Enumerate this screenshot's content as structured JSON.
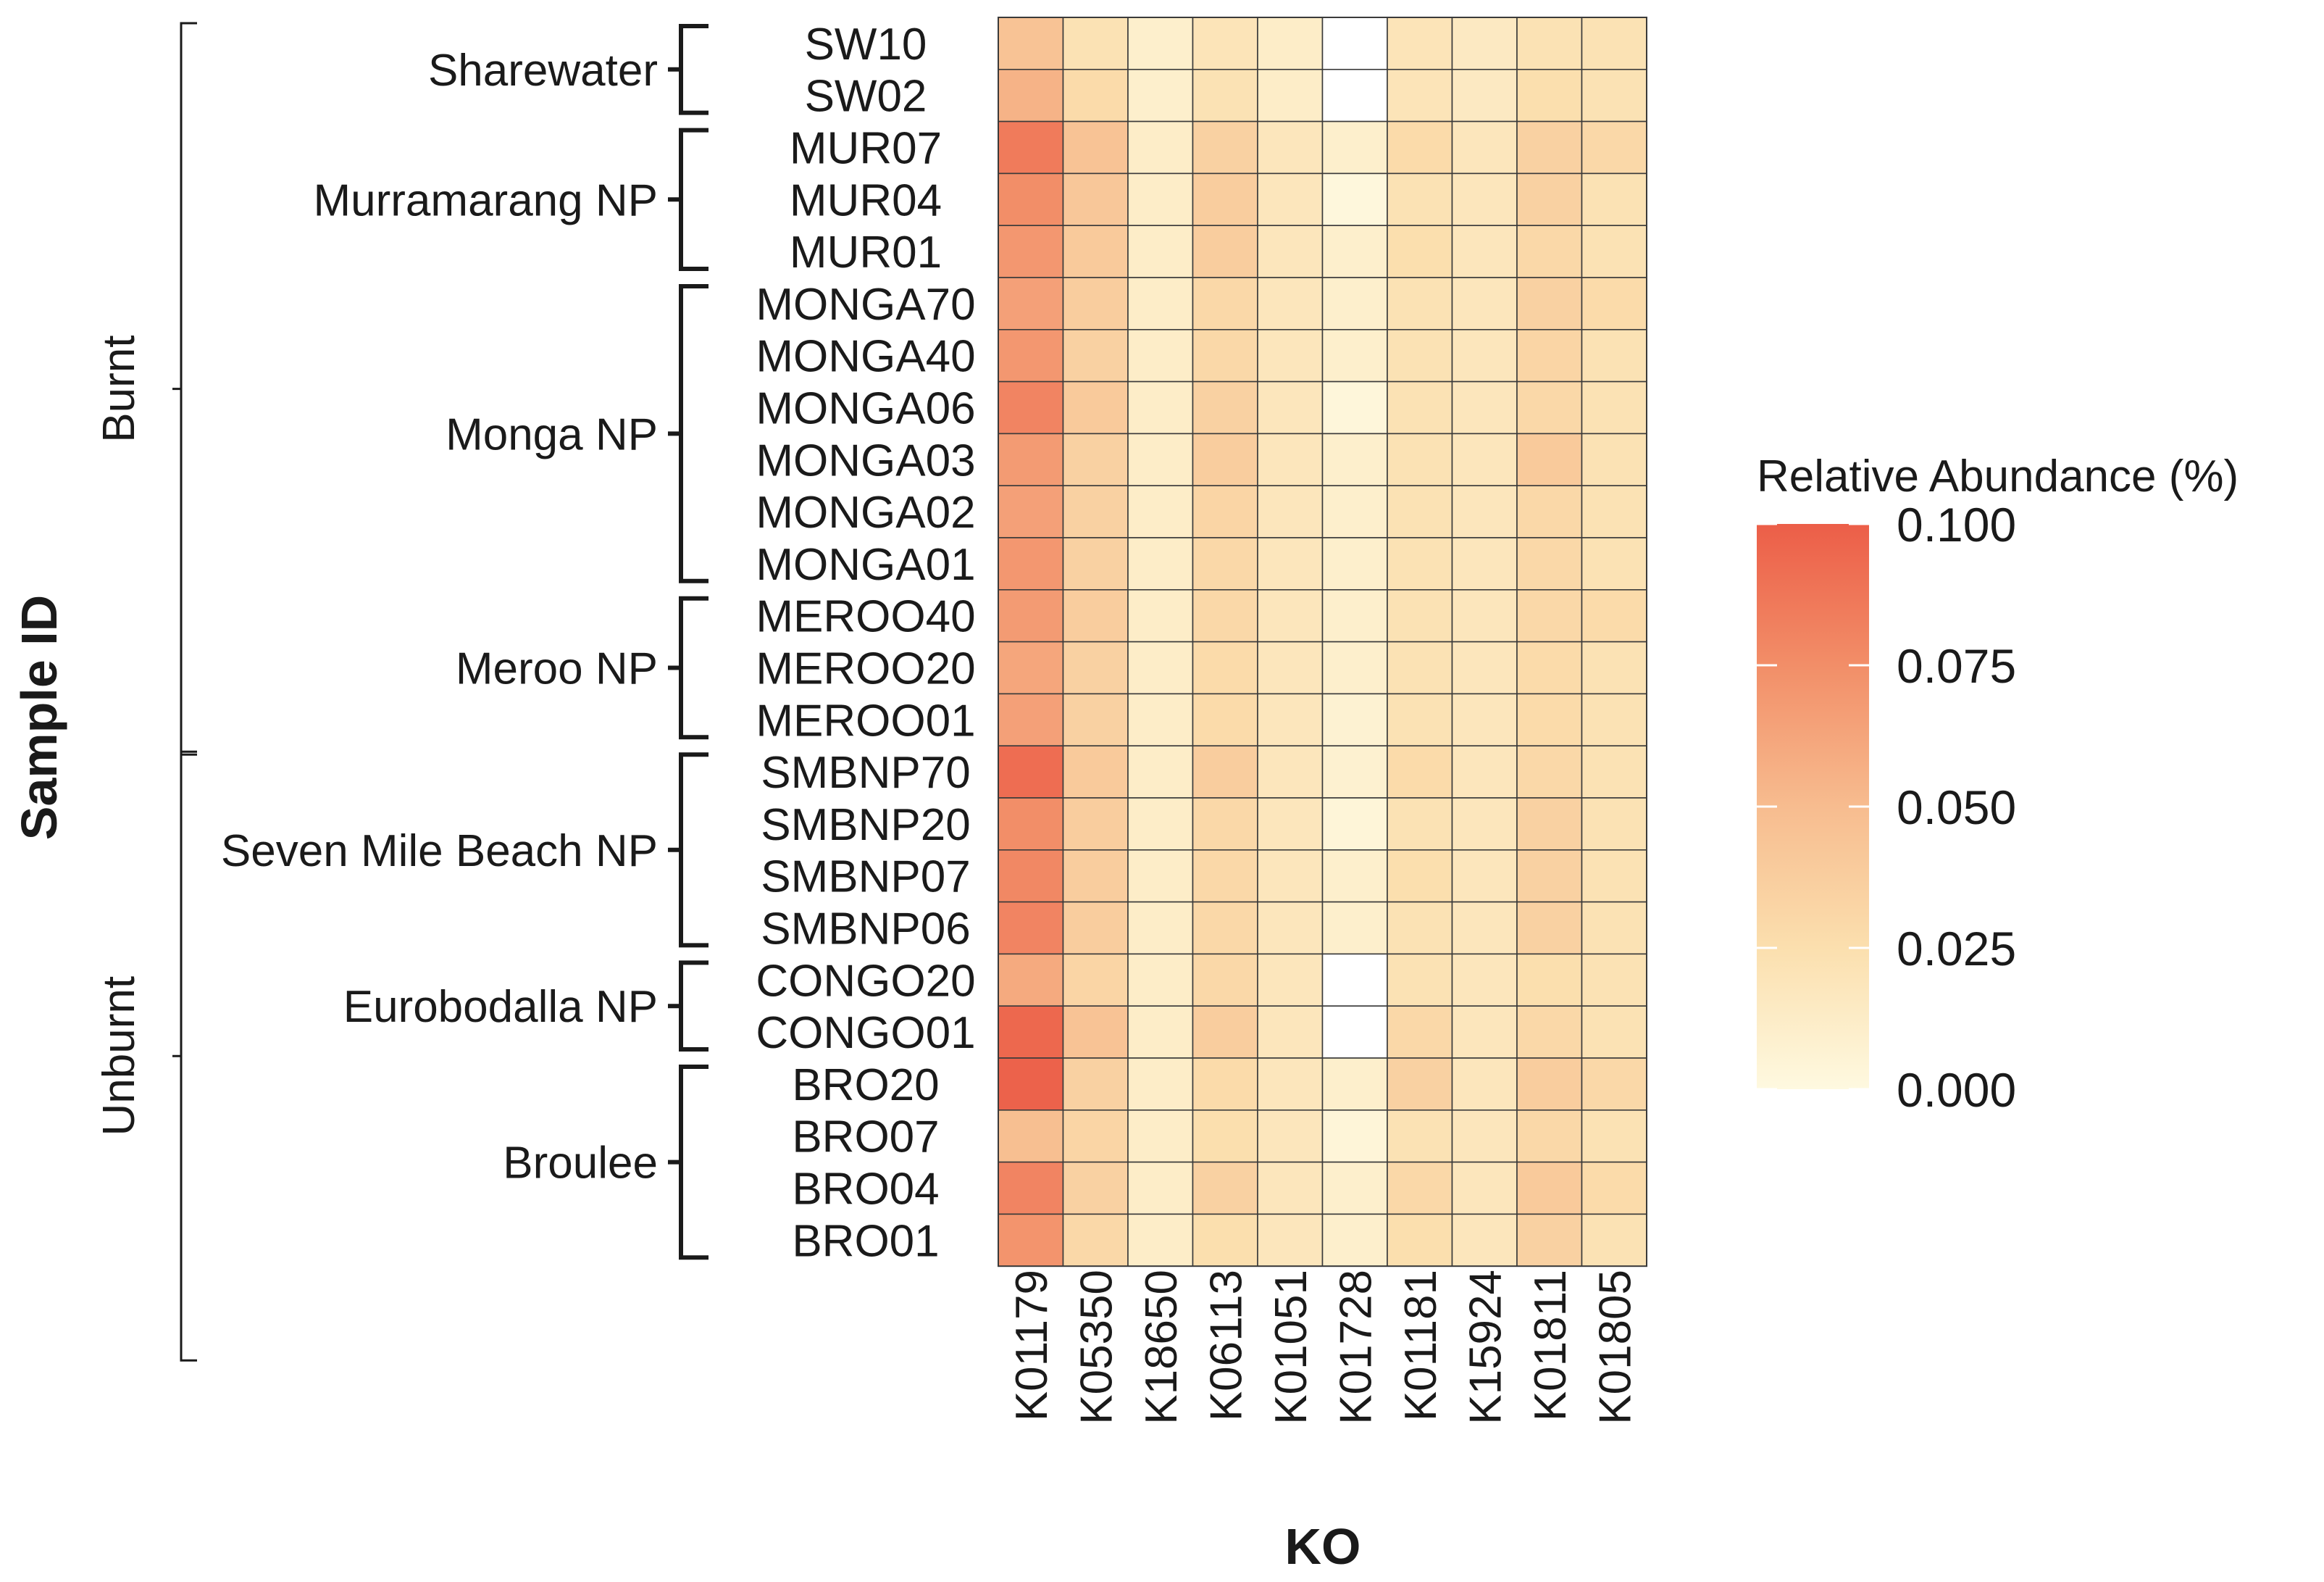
{
  "chart_data": {
    "type": "heatmap",
    "xlabel": "KO",
    "ylabel": "Sample ID",
    "legend_title": "Relative Abundance (%)",
    "color_range": [
      0,
      0.1
    ],
    "low_color": "#fef9e0",
    "high_color": "#ec5e48",
    "missing_color": "#ffffff",
    "legend_ticks": [
      "0.000",
      "0.025",
      "0.050",
      "0.075",
      "0.100"
    ],
    "legend_tick_values": [
      0,
      0.025,
      0.05,
      0.075,
      0.1
    ],
    "columns": [
      "K01179",
      "K05350",
      "K18650",
      "K06113",
      "K01051",
      "K01728",
      "K01181",
      "K15924",
      "K01811",
      "K01805"
    ],
    "rows": [
      "SW10",
      "SW02",
      "MUR07",
      "MUR04",
      "MUR01",
      "MONGA70",
      "MONGA40",
      "MONGA06",
      "MONGA03",
      "MONGA02",
      "MONGA01",
      "MEROO40",
      "MEROO20",
      "MEROO01",
      "SMBNP70",
      "SMBNP20",
      "SMBNP07",
      "SMBNP06",
      "CONGO20",
      "CONGO01",
      "BRO20",
      "BRO07",
      "BRO04",
      "BRO01"
    ],
    "values": [
      [
        0.045,
        0.022,
        0.01,
        0.02,
        0.012,
        null,
        0.02,
        0.015,
        0.022,
        0.022
      ],
      [
        0.055,
        0.028,
        0.01,
        0.022,
        0.012,
        null,
        0.02,
        0.015,
        0.025,
        0.022
      ],
      [
        0.085,
        0.045,
        0.012,
        0.035,
        0.018,
        0.01,
        0.028,
        0.018,
        0.035,
        0.03
      ],
      [
        0.075,
        0.042,
        0.012,
        0.038,
        0.018,
        0.002,
        0.022,
        0.018,
        0.035,
        0.022
      ],
      [
        0.07,
        0.04,
        0.012,
        0.038,
        0.018,
        0.01,
        0.025,
        0.018,
        0.03,
        0.022
      ],
      [
        0.065,
        0.038,
        0.012,
        0.03,
        0.018,
        0.01,
        0.022,
        0.018,
        0.035,
        0.028
      ],
      [
        0.07,
        0.035,
        0.012,
        0.03,
        0.018,
        0.01,
        0.022,
        0.018,
        0.032,
        0.022
      ],
      [
        0.08,
        0.04,
        0.012,
        0.035,
        0.018,
        0.003,
        0.022,
        0.018,
        0.03,
        0.022
      ],
      [
        0.068,
        0.035,
        0.012,
        0.038,
        0.018,
        0.01,
        0.022,
        0.018,
        0.04,
        0.022
      ],
      [
        0.065,
        0.035,
        0.012,
        0.032,
        0.018,
        0.01,
        0.022,
        0.018,
        0.03,
        0.022
      ],
      [
        0.07,
        0.035,
        0.012,
        0.03,
        0.018,
        0.01,
        0.022,
        0.018,
        0.03,
        0.022
      ],
      [
        0.068,
        0.038,
        0.012,
        0.03,
        0.018,
        0.01,
        0.022,
        0.018,
        0.03,
        0.028
      ],
      [
        0.062,
        0.035,
        0.012,
        0.028,
        0.018,
        0.01,
        0.022,
        0.018,
        0.028,
        0.022
      ],
      [
        0.065,
        0.035,
        0.012,
        0.028,
        0.018,
        0.007,
        0.022,
        0.018,
        0.028,
        0.022
      ],
      [
        0.092,
        0.04,
        0.012,
        0.038,
        0.018,
        0.008,
        0.028,
        0.018,
        0.03,
        0.022
      ],
      [
        0.075,
        0.038,
        0.012,
        0.03,
        0.018,
        0.004,
        0.022,
        0.018,
        0.035,
        0.022
      ],
      [
        0.078,
        0.038,
        0.012,
        0.03,
        0.018,
        0.01,
        0.025,
        0.018,
        0.035,
        0.022
      ],
      [
        0.08,
        0.038,
        0.012,
        0.03,
        0.018,
        0.01,
        0.022,
        0.018,
        0.035,
        0.022
      ],
      [
        0.06,
        0.032,
        0.012,
        0.03,
        0.018,
        null,
        0.022,
        0.018,
        0.025,
        0.022
      ],
      [
        0.095,
        0.045,
        0.012,
        0.038,
        0.018,
        null,
        0.03,
        0.018,
        0.03,
        0.022
      ],
      [
        0.098,
        0.035,
        0.012,
        0.028,
        0.018,
        0.01,
        0.035,
        0.018,
        0.038,
        0.03
      ],
      [
        0.048,
        0.032,
        0.012,
        0.025,
        0.018,
        0.004,
        0.022,
        0.018,
        0.03,
        0.022
      ],
      [
        0.08,
        0.035,
        0.012,
        0.035,
        0.018,
        0.01,
        0.03,
        0.018,
        0.04,
        0.028
      ],
      [
        0.072,
        0.03,
        0.012,
        0.025,
        0.018,
        0.01,
        0.025,
        0.018,
        0.035,
        0.022
      ]
    ],
    "sites": [
      {
        "name": "Sharewater",
        "first": 0,
        "last": 1
      },
      {
        "name": "Murramarang NP",
        "first": 2,
        "last": 4
      },
      {
        "name": "Monga NP",
        "first": 5,
        "last": 10
      },
      {
        "name": "Meroo NP",
        "first": 11,
        "last": 13
      },
      {
        "name": "Seven Mile Beach NP",
        "first": 14,
        "last": 17
      },
      {
        "name": "Eurobodalla NP",
        "first": 18,
        "last": 19
      },
      {
        "name": "Broulee",
        "first": 20,
        "last": 23
      }
    ],
    "treatments": [
      {
        "name": "Burnt",
        "first": 0,
        "last": 13
      },
      {
        "name": "Unburnt",
        "first": 14,
        "last": 23
      }
    ]
  }
}
